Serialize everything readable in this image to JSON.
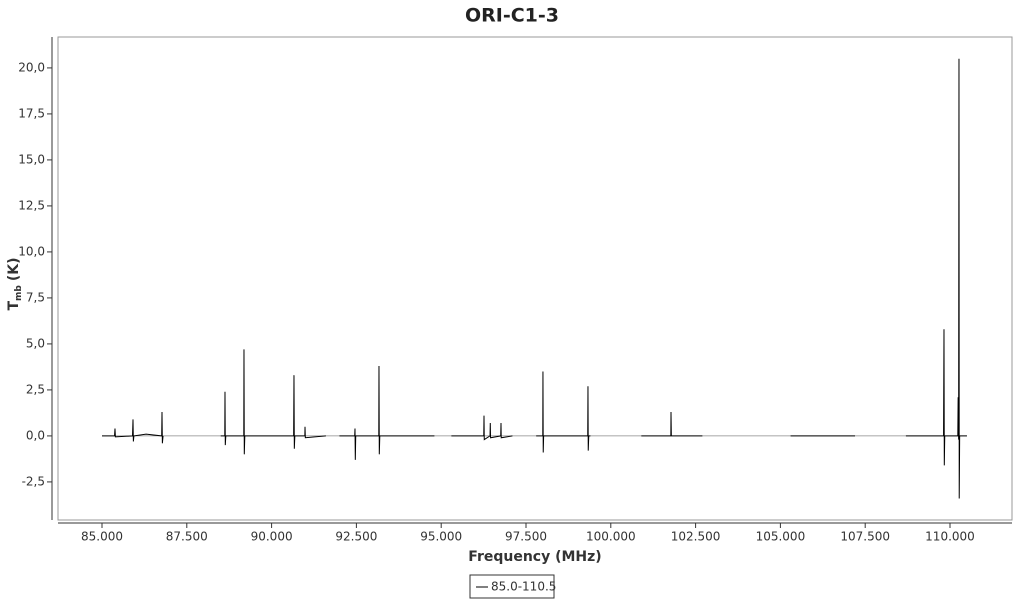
{
  "chart_data": {
    "type": "line",
    "title": "ORI-C1-3",
    "x_label": "Frequency (MHz)",
    "y_label": [
      "T",
      "mb",
      "(K)"
    ],
    "x": [
      85000,
      85370,
      85383,
      85395,
      85900,
      85914,
      85925,
      85940,
      86300,
      86760,
      86769,
      86780,
      86800,
      87700,
      88500,
      88620,
      88626,
      88635,
      88650,
      89180,
      89186,
      89195,
      89210,
      90650,
      90660,
      90670,
      90685,
      90980,
      90985,
      90995,
      91600,
      91800,
      92000,
      92450,
      92459,
      92468,
      92480,
      93160,
      93166,
      93175,
      93190,
      94800,
      95100,
      95300,
      96255,
      96262,
      96270,
      96440,
      96447,
      96455,
      96755,
      96763,
      96770,
      97100,
      97500,
      97800,
      97995,
      98000,
      98008,
      98020,
      99320,
      99327,
      99335,
      99350,
      99400,
      100200,
      100900,
      101770,
      101775,
      101785,
      102700,
      104000,
      105300,
      107200,
      108000,
      108700,
      109810,
      109823,
      109832,
      109845,
      110230,
      110240,
      110255,
      110265,
      110272,
      110285,
      110500
    ],
    "series": [
      {
        "name": "85.0-110.5",
        "color": "#000000",
        "values": [
          0,
          0,
          0.4,
          -0.05,
          0,
          0.9,
          -0.3,
          0,
          0.1,
          0,
          1.3,
          -0.4,
          0,
          null,
          0,
          0,
          2.4,
          -0.5,
          0,
          0,
          4.7,
          -1.0,
          0,
          0,
          3.3,
          -0.7,
          0,
          0,
          0.5,
          -0.1,
          0,
          null,
          0,
          0,
          0.4,
          -1.3,
          0,
          0,
          3.8,
          -1.0,
          0,
          0,
          null,
          0,
          0,
          1.1,
          -0.2,
          0,
          0.7,
          -0.1,
          0,
          0.7,
          -0.1,
          0,
          null,
          0,
          0,
          3.5,
          -0.9,
          0,
          0,
          2.7,
          -0.8,
          0,
          0,
          null,
          0,
          0,
          1.3,
          0,
          0,
          null,
          0,
          0,
          null,
          0,
          0,
          5.8,
          -1.6,
          0,
          0,
          2.1,
          -0.2,
          20.5,
          -3.4,
          0,
          0
        ]
      }
    ],
    "xlim": [
      83703,
      111828
    ],
    "ylim": [
      -4.57,
      21.68
    ],
    "xticks": [
      {
        "value": 85000,
        "label": "85.000"
      },
      {
        "value": 87500,
        "label": "87.500"
      },
      {
        "value": 90000,
        "label": "90.000"
      },
      {
        "value": 92500,
        "label": "92.500"
      },
      {
        "value": 95000,
        "label": "95.000"
      },
      {
        "value": 97500,
        "label": "97.500"
      },
      {
        "value": 100000,
        "label": "100.000"
      },
      {
        "value": 102500,
        "label": "102.500"
      },
      {
        "value": 105000,
        "label": "105.000"
      },
      {
        "value": 107500,
        "label": "107.500"
      },
      {
        "value": 110000,
        "label": "110.000"
      }
    ],
    "yticks": [
      {
        "value": -2.5,
        "label": "-2,5"
      },
      {
        "value": 0,
        "label": "0,0"
      },
      {
        "value": 2.5,
        "label": "2,5"
      },
      {
        "value": 5,
        "label": "5,0"
      },
      {
        "value": 7.5,
        "label": "7,5"
      },
      {
        "value": 10,
        "label": "10,0"
      },
      {
        "value": 12.5,
        "label": "12,5"
      },
      {
        "value": 15,
        "label": "15,0"
      },
      {
        "value": 17.5,
        "label": "17,5"
      },
      {
        "value": 20,
        "label": "20,0"
      }
    ]
  }
}
